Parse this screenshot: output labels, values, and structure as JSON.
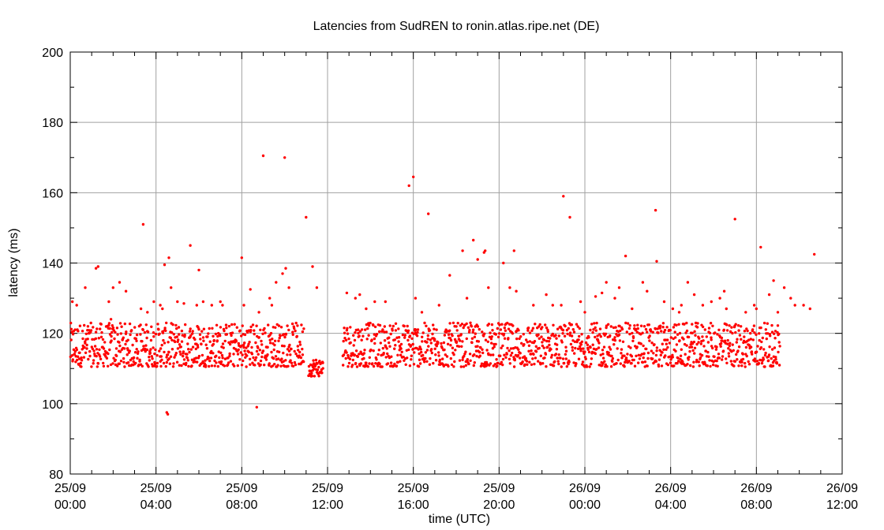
{
  "chart_data": {
    "type": "scatter",
    "title": "Latencies from SudREN to ronin.atlas.ripe.net (DE)",
    "xlabel": "time (UTC)",
    "ylabel": "latency (ms)",
    "xlim": [
      0,
      36
    ],
    "ylim": [
      80,
      200
    ],
    "y_ticks": [
      80,
      100,
      120,
      140,
      160,
      180,
      200
    ],
    "x_ticks": [
      {
        "value": 0,
        "line1": "25/09",
        "line2": "00:00"
      },
      {
        "value": 4,
        "line1": "25/09",
        "line2": "04:00"
      },
      {
        "value": 8,
        "line1": "25/09",
        "line2": "08:00"
      },
      {
        "value": 12,
        "line1": "25/09",
        "line2": "12:00"
      },
      {
        "value": 16,
        "line1": "25/09",
        "line2": "16:00"
      },
      {
        "value": 20,
        "line1": "25/09",
        "line2": "20:00"
      },
      {
        "value": 24,
        "line1": "26/09",
        "line2": "00:00"
      },
      {
        "value": 28,
        "line1": "26/09",
        "line2": "04:00"
      },
      {
        "value": 32,
        "line1": "26/09",
        "line2": "08:00"
      },
      {
        "value": 36,
        "line1": "26/09",
        "line2": "12:00"
      }
    ],
    "grid": true,
    "point_color": "#ff0000",
    "segments": [
      {
        "x_start": 0.0,
        "x_end": 10.9,
        "low": 110.5,
        "high": 123
      },
      {
        "x_start": 11.1,
        "x_end": 11.8,
        "low": 107.8,
        "high": 113
      },
      {
        "x_start": 12.7,
        "x_end": 33.1,
        "low": 110.5,
        "high": 123
      }
    ],
    "outliers": [
      [
        0.1,
        129
      ],
      [
        0.3,
        128
      ],
      [
        0.7,
        133
      ],
      [
        1.2,
        138.5
      ],
      [
        1.3,
        139
      ],
      [
        1.8,
        129
      ],
      [
        2.0,
        133
      ],
      [
        2.3,
        134.5
      ],
      [
        2.6,
        132
      ],
      [
        1.9,
        124
      ],
      [
        3.3,
        127
      ],
      [
        3.4,
        151
      ],
      [
        3.6,
        126
      ],
      [
        3.9,
        129
      ],
      [
        4.2,
        128
      ],
      [
        4.3,
        127
      ],
      [
        4.4,
        139.5
      ],
      [
        4.6,
        141.5
      ],
      [
        4.7,
        133
      ],
      [
        4.5,
        97.5
      ],
      [
        4.55,
        97
      ],
      [
        5.0,
        129
      ],
      [
        5.3,
        128.5
      ],
      [
        5.6,
        145
      ],
      [
        5.9,
        128
      ],
      [
        6.0,
        138
      ],
      [
        6.2,
        129
      ],
      [
        6.6,
        128
      ],
      [
        7.0,
        129
      ],
      [
        7.1,
        128
      ],
      [
        8.0,
        141.5
      ],
      [
        8.1,
        128
      ],
      [
        8.4,
        132.5
      ],
      [
        8.7,
        99
      ],
      [
        8.8,
        126
      ],
      [
        9.0,
        170.5
      ],
      [
        9.3,
        130
      ],
      [
        9.4,
        128
      ],
      [
        9.6,
        134.5
      ],
      [
        9.9,
        137
      ],
      [
        10.0,
        170
      ],
      [
        10.05,
        138.5
      ],
      [
        10.2,
        133
      ],
      [
        11.0,
        153
      ],
      [
        11.3,
        139
      ],
      [
        11.5,
        133
      ],
      [
        12.9,
        131.5
      ],
      [
        13.3,
        130
      ],
      [
        13.5,
        131
      ],
      [
        13.8,
        127
      ],
      [
        14.2,
        129
      ],
      [
        14.7,
        129
      ],
      [
        15.8,
        162
      ],
      [
        16.0,
        164.5
      ],
      [
        16.1,
        130
      ],
      [
        16.4,
        126
      ],
      [
        16.7,
        154
      ],
      [
        17.2,
        128
      ],
      [
        17.7,
        136.5
      ],
      [
        18.3,
        143.5
      ],
      [
        18.5,
        130
      ],
      [
        18.8,
        146.5
      ],
      [
        19.0,
        141
      ],
      [
        19.3,
        143
      ],
      [
        19.35,
        143.5
      ],
      [
        19.5,
        133
      ],
      [
        20.2,
        140
      ],
      [
        20.5,
        133
      ],
      [
        20.7,
        143.5
      ],
      [
        20.8,
        132
      ],
      [
        21.6,
        128
      ],
      [
        22.2,
        131
      ],
      [
        22.9,
        128
      ],
      [
        23.0,
        159
      ],
      [
        23.3,
        153
      ],
      [
        23.8,
        129
      ],
      [
        24.0,
        126
      ],
      [
        24.5,
        130.5
      ],
      [
        24.8,
        131.5
      ],
      [
        25.0,
        134.5
      ],
      [
        25.4,
        130
      ],
      [
        25.6,
        133
      ],
      [
        25.9,
        142
      ],
      [
        26.2,
        127
      ],
      [
        26.7,
        134.5
      ],
      [
        26.9,
        132
      ],
      [
        27.3,
        155
      ],
      [
        27.35,
        140.5
      ],
      [
        27.7,
        129
      ],
      [
        28.1,
        127
      ],
      [
        28.4,
        126
      ],
      [
        28.5,
        128
      ],
      [
        28.8,
        134.5
      ],
      [
        29.1,
        131
      ],
      [
        29.5,
        128
      ],
      [
        29.9,
        129
      ],
      [
        30.3,
        130
      ],
      [
        30.5,
        132
      ],
      [
        30.6,
        127
      ],
      [
        31.0,
        152.5
      ],
      [
        31.5,
        126
      ],
      [
        31.9,
        128
      ],
      [
        32.2,
        144.5
      ],
      [
        32.6,
        131
      ],
      [
        32.8,
        135
      ],
      [
        33.3,
        133
      ],
      [
        33.6,
        130
      ],
      [
        33.8,
        128
      ],
      [
        34.2,
        128
      ],
      [
        34.5,
        127
      ],
      [
        34.7,
        142.5
      ],
      [
        32.0,
        127
      ],
      [
        33.0,
        126
      ],
      [
        22.5,
        128
      ]
    ]
  }
}
